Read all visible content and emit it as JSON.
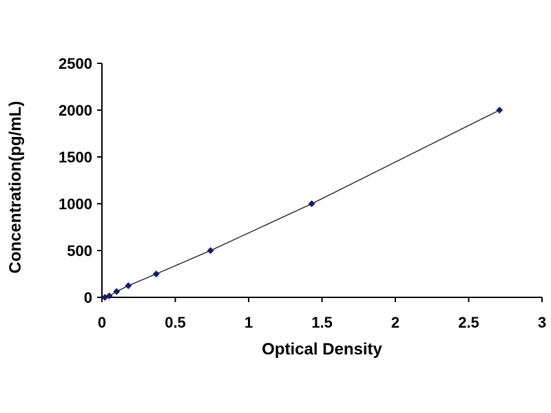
{
  "chart_data": {
    "type": "scatter",
    "title": "",
    "xlabel": "Optical Density",
    "ylabel": "Concentration(pg/mL)",
    "xlim": [
      0,
      3
    ],
    "ylim": [
      0,
      2500
    ],
    "x_ticks": [
      "0",
      "0.5",
      "1",
      "1.5",
      "2",
      "2.5",
      "3"
    ],
    "y_ticks": [
      "0",
      "500",
      "1000",
      "1500",
      "2000",
      "2500"
    ],
    "grid": false,
    "legend": "none",
    "series": [
      {
        "x": [
          0.02,
          0.05,
          0.1,
          0.18,
          0.37,
          0.74,
          1.43,
          2.71
        ],
        "y": [
          0,
          15.6,
          62.5,
          125,
          250,
          500,
          1000,
          2000
        ]
      }
    ],
    "colors": {
      "marker": "#1a1a6e",
      "line": "#1a1a1a",
      "axis": "#000000"
    }
  }
}
